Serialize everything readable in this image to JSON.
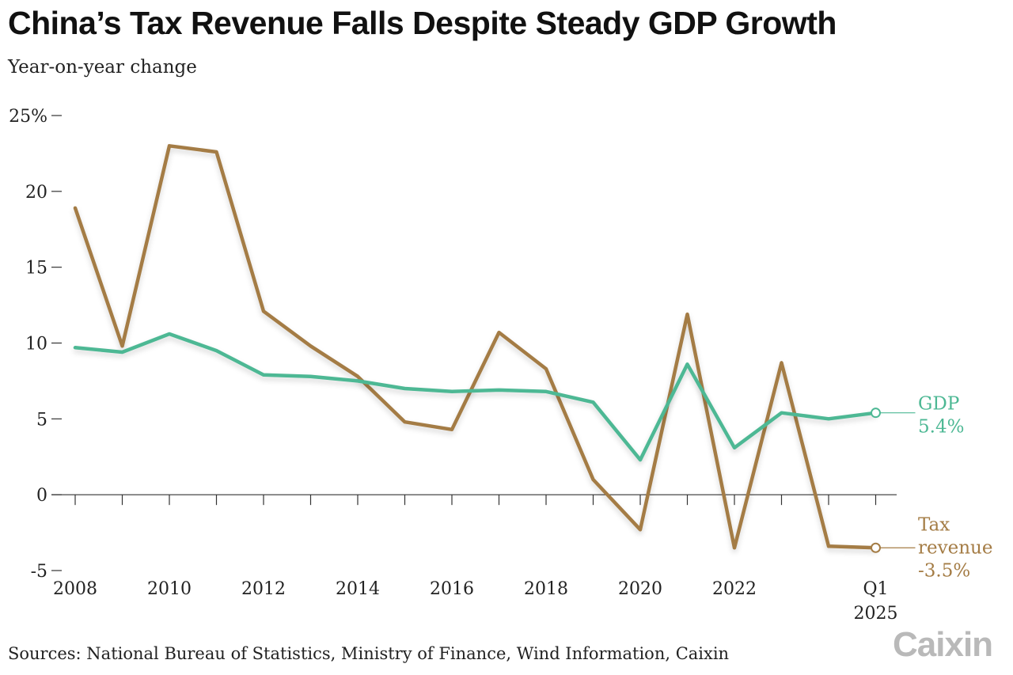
{
  "title": "China’s Tax Revenue Falls Despite Steady GDP Growth",
  "subtitle": "Year-on-year change",
  "source": "Sources: National Bureau of Statistics, Ministry of Finance, Wind Information, Caixin",
  "logo": "Caixin",
  "colors": {
    "gdp": "#4db894",
    "tax": "#a47c45",
    "axis": "#333333",
    "text": "#222222"
  },
  "chart_data": {
    "type": "line",
    "title": "China’s Tax Revenue Falls Despite Steady GDP Growth",
    "ylabel": "Year-on-year change",
    "ylim": [
      -5,
      25
    ],
    "y_ticks": [
      {
        "value": 25,
        "label": "25%"
      },
      {
        "value": 20,
        "label": "20"
      },
      {
        "value": 15,
        "label": "15"
      },
      {
        "value": 10,
        "label": "10"
      },
      {
        "value": 5,
        "label": "5"
      },
      {
        "value": 0,
        "label": "0"
      },
      {
        "value": -5,
        "label": "-5"
      }
    ],
    "x": [
      2008,
      2009,
      2010,
      2011,
      2012,
      2013,
      2014,
      2015,
      2016,
      2017,
      2018,
      2019,
      2020,
      2021,
      2022,
      2023,
      2024,
      2025
    ],
    "x_ticks": [
      {
        "x": 2008,
        "label": "2008"
      },
      {
        "x": 2010,
        "label": "2010"
      },
      {
        "x": 2012,
        "label": "2012"
      },
      {
        "x": 2014,
        "label": "2014"
      },
      {
        "x": 2016,
        "label": "2016"
      },
      {
        "x": 2018,
        "label": "2018"
      },
      {
        "x": 2020,
        "label": "2020"
      },
      {
        "x": 2022,
        "label": "2022"
      },
      {
        "x": 2025,
        "label": "Q1",
        "label2": "2025"
      }
    ],
    "minor_ticks": [
      2009,
      2011,
      2013,
      2015,
      2017,
      2019,
      2021,
      2023,
      2024
    ],
    "series": [
      {
        "name": "GDP",
        "key": "gdp",
        "values": [
          9.7,
          9.4,
          10.6,
          9.5,
          7.9,
          7.8,
          7.5,
          7.0,
          6.8,
          6.9,
          6.8,
          6.1,
          2.3,
          8.6,
          3.1,
          5.4,
          5.0,
          5.4
        ],
        "end_label": [
          "GDP",
          "5.4%"
        ]
      },
      {
        "name": "Tax revenue",
        "key": "tax",
        "values": [
          18.9,
          9.8,
          23.0,
          22.6,
          12.1,
          9.8,
          7.8,
          4.8,
          4.3,
          10.7,
          8.3,
          1.0,
          -2.3,
          11.9,
          -3.5,
          8.7,
          -3.4,
          -3.5
        ],
        "end_label": [
          "Tax",
          "revenue",
          "-3.5%"
        ]
      }
    ]
  }
}
